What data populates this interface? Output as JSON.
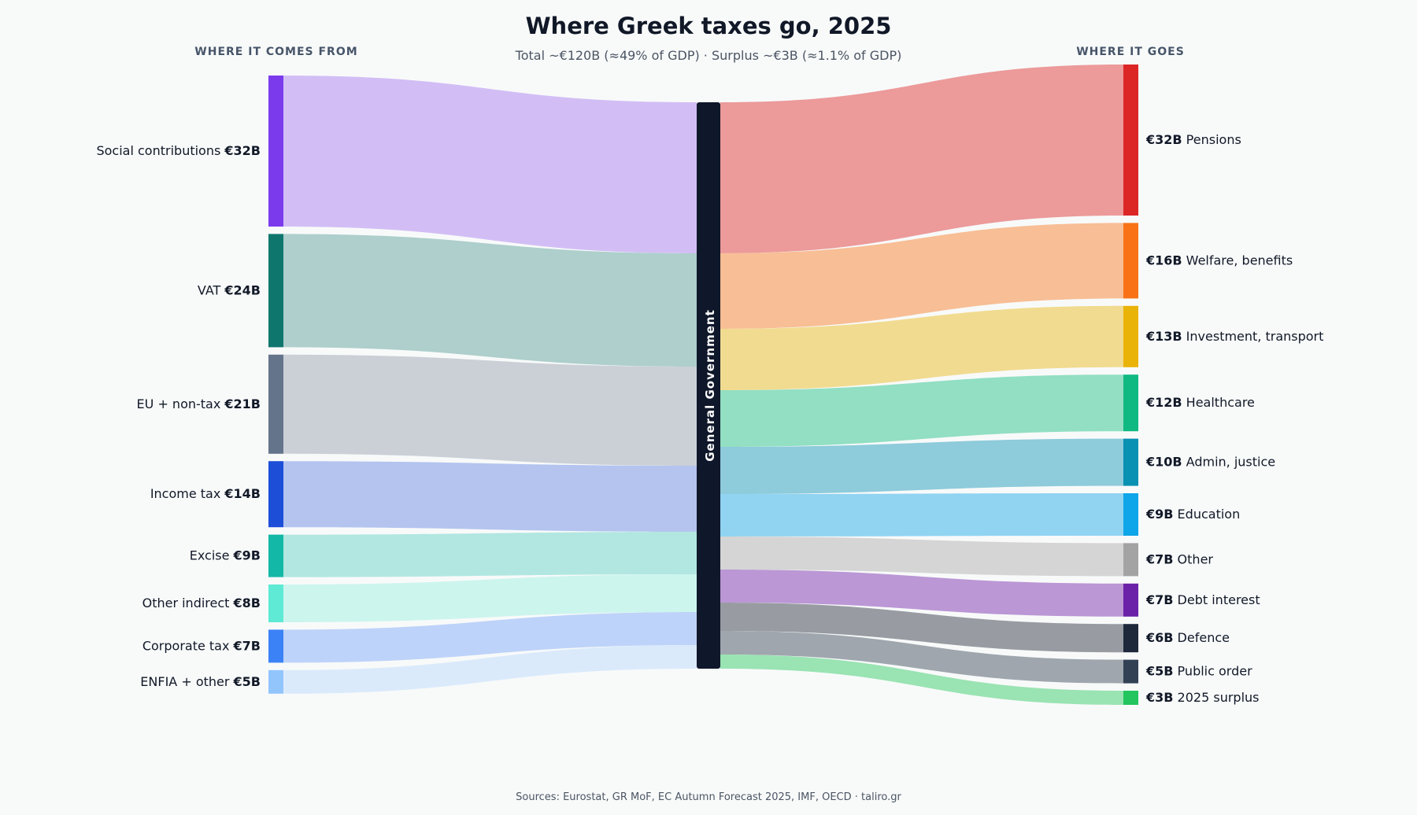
{
  "chart_data": {
    "type": "sankey",
    "title": "Where Greek taxes go, 2025",
    "subtitle": "Total ~€120B (≈49% of GDP) · Surplus ~€3B (≈1.1% of GDP)",
    "left_header": "WHERE IT COMES FROM",
    "right_header": "WHERE IT GOES",
    "center_node": "General Government",
    "source_note": "Sources: Eurostat, GR MoF, EC Autumn Forecast 2025, IMF, OECD · taliro.gr",
    "value_unit": "€B",
    "sources": [
      {
        "name": "Social contributions",
        "value_label": "€32B",
        "value": 32,
        "color": "#7c3aed",
        "flow_color": "#d2bef5"
      },
      {
        "name": "VAT",
        "value_label": "€24B",
        "value": 24,
        "color": "#0f766e",
        "flow_color": "#aecfcc"
      },
      {
        "name": "EU + non-tax",
        "value_label": "€21B",
        "value": 21,
        "color": "#64748b",
        "flow_color": "#cbd0d7"
      },
      {
        "name": "Income tax",
        "value_label": "€14B",
        "value": 14,
        "color": "#1d4ed8",
        "flow_color": "#b4c4ef"
      },
      {
        "name": "Excise",
        "value_label": "€9B",
        "value": 9,
        "color": "#14b8a6",
        "flow_color": "#b2e7e1"
      },
      {
        "name": "Other indirect",
        "value_label": "€8B",
        "value": 8,
        "color": "#5eead4",
        "flow_color": "#ccf5ee"
      },
      {
        "name": "Corporate tax",
        "value_label": "€7B",
        "value": 7,
        "color": "#3b82f6",
        "flow_color": "#bed3f9"
      },
      {
        "name": "ENFIA + other",
        "value_label": "€5B",
        "value": 5,
        "color": "#93c5fd",
        "flow_color": "#dbeafb"
      }
    ],
    "uses": [
      {
        "name": "Pensions",
        "value_label": "€32B",
        "value": 32,
        "color": "#dc2626",
        "flow_color": "#ec9a9a"
      },
      {
        "name": "Welfare, benefits",
        "value_label": "€16B",
        "value": 16,
        "color": "#f97316",
        "flow_color": "#f8be95"
      },
      {
        "name": "Investment, transport",
        "value_label": "€13B",
        "value": 13,
        "color": "#eab308",
        "flow_color": "#f1db90"
      },
      {
        "name": "Healthcare",
        "value_label": "€12B",
        "value": 12,
        "color": "#10b981",
        "flow_color": "#92dfc3"
      },
      {
        "name": "Admin, justice",
        "value_label": "€10B",
        "value": 10,
        "color": "#0891b2",
        "flow_color": "#8ecbdb"
      },
      {
        "name": "Education",
        "value_label": "€9B",
        "value": 9,
        "color": "#0ea5e9",
        "flow_color": "#91d4f2"
      },
      {
        "name": "Other",
        "value_label": "€7B",
        "value": 7,
        "color": "#a3a3a3",
        "flow_color": "#d4d5d4"
      },
      {
        "name": "Debt interest",
        "value_label": "€7B",
        "value": 7,
        "color": "#6b21a8",
        "flow_color": "#bb97d5"
      },
      {
        "name": "Defence",
        "value_label": "€6B",
        "value": 6,
        "color": "#1e293b",
        "flow_color": "#989ca2"
      },
      {
        "name": "Public order",
        "value_label": "€5B",
        "value": 5,
        "color": "#334155",
        "flow_color": "#9fa6ae"
      },
      {
        "name": "2025 surplus",
        "value_label": "€3B",
        "value": 3,
        "color": "#22c55e",
        "flow_color": "#9ae3b3"
      }
    ],
    "colors": {
      "background": "#f8fafa",
      "title": "#111827",
      "subtitle": "#4b5563",
      "header": "#475569",
      "center_bar": "#0f172a",
      "center_text": "#ffffff",
      "label": "#111827",
      "source_note": "#4b5563"
    }
  }
}
